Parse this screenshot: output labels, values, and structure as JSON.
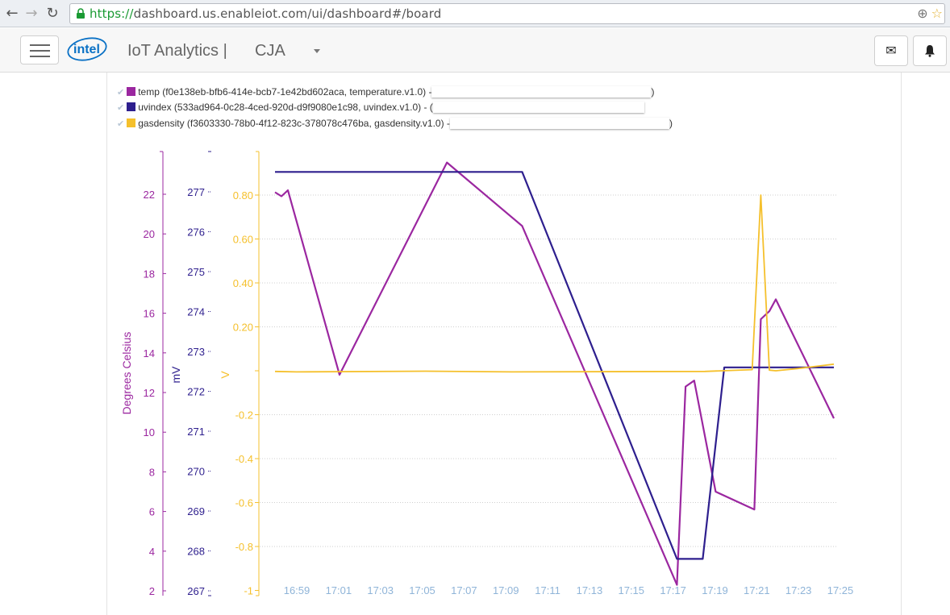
{
  "browser": {
    "url_scheme": "https://",
    "url_rest": "dashboard.us.enableiot.com/ui/dashboard#/board"
  },
  "header": {
    "brand": "intel",
    "app_title": "IoT Analytics |",
    "account": "CJA"
  },
  "colors": {
    "temp": "#9b27a0",
    "uvindex": "#2e1f8e",
    "gasdensity": "#f5c02c",
    "xtick": "#8fb4d8"
  },
  "icons": [
    "back-icon",
    "forward-icon",
    "reload-icon",
    "lock-icon",
    "zoom-icon",
    "star-icon",
    "menu-icon",
    "mail-icon",
    "bell-icon"
  ],
  "legend": [
    {
      "label": "temp (f0e138eb-bfb6-414e-bcb7-1e42bd602aca, temperature.v1.0) -",
      "tail": ")"
    },
    {
      "label": "uvindex (533ad964-0c28-4ced-920d-d9f9080e1c98, uvindex.v1.0) - (",
      "tail": ""
    },
    {
      "label": "gasdensity (f3603330-78b0-4f12-823c-378078c476ba, gasdensity.v1.0) -",
      "tail": ")"
    }
  ],
  "chart_data": {
    "type": "line",
    "x_ticks": [
      "16:59",
      "17:01",
      "17:03",
      "17:05",
      "17:07",
      "17:09",
      "17:11",
      "17:13",
      "17:15",
      "17:17",
      "17:19",
      "17:21",
      "17:23",
      "17:25"
    ],
    "x_range_minutes": [
      -0.5,
      26
    ],
    "axes": {
      "temp": {
        "label": "Degrees Celsius",
        "range": [
          2,
          24
        ],
        "ticks": [
          2,
          4,
          6,
          8,
          10,
          12,
          14,
          16,
          18,
          20,
          22
        ]
      },
      "uvindex": {
        "label": "mV",
        "range": [
          267,
          278
        ],
        "ticks": [
          267,
          268,
          269,
          270,
          271,
          272,
          273,
          274,
          275,
          276,
          277
        ]
      },
      "gasdensity": {
        "label": "V",
        "range": [
          -1,
          1
        ],
        "ticks": [
          -1,
          -0.8,
          -0.6,
          -0.4,
          -0.2,
          0,
          0.2,
          0.4,
          0.6,
          0.8
        ],
        "tick_labels": [
          "-1",
          "-0.8",
          "-0.6",
          "-0.4",
          "-0.2",
          "",
          "0.20",
          "0.40",
          "0.60",
          "0.80"
        ]
      }
    },
    "grid": true,
    "series": [
      {
        "name": "temp",
        "axis": "temp",
        "points": [
          [
            0.0,
            22.1
          ],
          [
            0.3,
            21.9
          ],
          [
            0.6,
            22.2
          ],
          [
            3.0,
            12.9
          ],
          [
            8.0,
            23.6
          ],
          [
            11.5,
            20.4
          ],
          [
            18.7,
            2.3
          ],
          [
            19.1,
            12.3
          ],
          [
            19.5,
            12.6
          ],
          [
            20.5,
            7.0
          ],
          [
            22.3,
            6.1
          ],
          [
            22.6,
            15.7
          ],
          [
            23.0,
            16.1
          ],
          [
            23.3,
            16.7
          ],
          [
            26.0,
            10.7
          ]
        ]
      },
      {
        "name": "uvindex",
        "axis": "uvindex",
        "points": [
          [
            0.0,
            277.5
          ],
          [
            11.5,
            277.5
          ],
          [
            18.7,
            267.8
          ],
          [
            19.9,
            267.8
          ],
          [
            20.9,
            272.6
          ],
          [
            26.0,
            272.6
          ]
        ]
      },
      {
        "name": "gasdensity",
        "axis": "gasdensity",
        "points": [
          [
            0.0,
            -0.003
          ],
          [
            1.0,
            -0.005
          ],
          [
            7.0,
            -0.002
          ],
          [
            11.0,
            -0.005
          ],
          [
            20.0,
            -0.003
          ],
          [
            22.2,
            0.005
          ],
          [
            22.6,
            0.8
          ],
          [
            23.0,
            0.003
          ],
          [
            23.3,
            0.0
          ],
          [
            24.3,
            0.01
          ],
          [
            26.0,
            0.03
          ]
        ]
      }
    ]
  }
}
